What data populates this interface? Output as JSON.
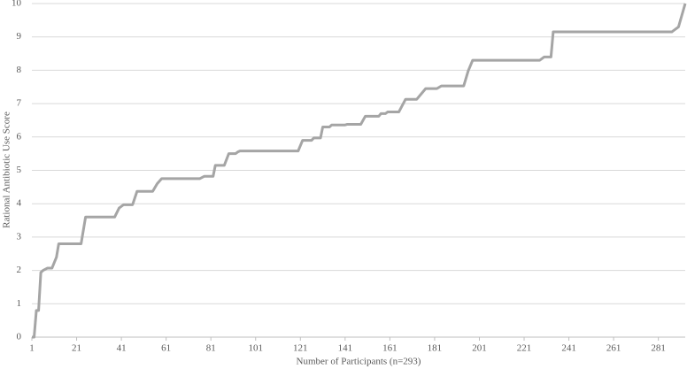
{
  "chart_data": {
    "type": "line",
    "x_label": "Number of Participants (n=293)",
    "y_label": "Rational Antibiotic Use Score",
    "xlim": [
      1,
      293
    ],
    "ylim": [
      0,
      10
    ],
    "xticks": [
      1,
      21,
      41,
      61,
      81,
      101,
      121,
      141,
      161,
      181,
      201,
      221,
      241,
      261,
      281
    ],
    "yticks": [
      0,
      1,
      2,
      3,
      4,
      5,
      6,
      7,
      8,
      9,
      10
    ],
    "grid": true,
    "series": [
      {
        "color": "#a5a5a5",
        "x": [
          1,
          2,
          3,
          4,
          5,
          6,
          8,
          10,
          12,
          13,
          23,
          25,
          38,
          40,
          42,
          46,
          48,
          55,
          57,
          59,
          76,
          78,
          82,
          83,
          87,
          89,
          92,
          93,
          94,
          120,
          122,
          126,
          127,
          130,
          131,
          134,
          135,
          141,
          142,
          148,
          150,
          156,
          157,
          159,
          160,
          165,
          168,
          173,
          177,
          182,
          184,
          194,
          196,
          198,
          228,
          230,
          233,
          234,
          287,
          290,
          293
        ],
        "values": [
          0,
          0,
          0.8,
          0.8,
          1.94,
          2.0,
          2.07,
          2.07,
          2.4,
          2.8,
          2.8,
          3.6,
          3.6,
          3.87,
          3.97,
          3.97,
          4.37,
          4.37,
          4.6,
          4.75,
          4.75,
          4.82,
          4.82,
          5.15,
          5.15,
          5.5,
          5.5,
          5.55,
          5.58,
          5.58,
          5.9,
          5.9,
          5.97,
          5.97,
          6.3,
          6.3,
          6.36,
          6.36,
          6.38,
          6.38,
          6.62,
          6.62,
          6.7,
          6.7,
          6.75,
          6.75,
          7.13,
          7.13,
          7.45,
          7.45,
          7.53,
          7.53,
          7.98,
          8.3,
          8.3,
          8.4,
          8.4,
          9.15,
          9.15,
          9.3,
          10
        ]
      }
    ]
  }
}
